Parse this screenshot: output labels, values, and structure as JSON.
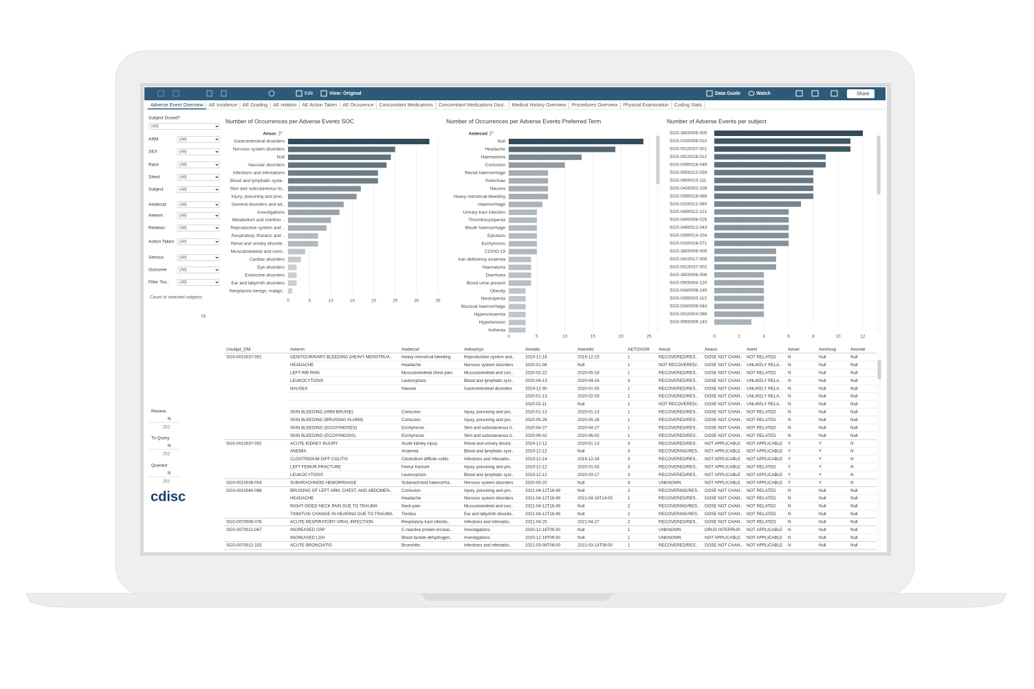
{
  "toolbar": {
    "edit": "Edit",
    "view": "View: Original",
    "data_guide": "Data Guide",
    "watch": "Watch",
    "share": "Share"
  },
  "tabs": [
    "Adverse Event Overview",
    "AE Incidence",
    "AE Grading",
    "AE relation",
    "AE Action Taken",
    "AE Occurence",
    "Concomitant Medications",
    "Concomitant Medications Dosi..",
    "Medical History Overview",
    "Procedures Overview",
    "Physical Examination",
    "Coding Stats"
  ],
  "filters": {
    "subject_dosed": {
      "label": "Subject Dosed?",
      "value": "(All)"
    },
    "items": [
      {
        "label": "ARM",
        "value": "(All)"
      },
      {
        "label": "SEX",
        "value": "(All)"
      },
      {
        "label": "Race",
        "value": "(All)"
      },
      {
        "label": "Siteid",
        "value": "(All)"
      },
      {
        "label": "Subject",
        "value": "(All)"
      },
      {
        "label": "Aedecod",
        "value": "(All)"
      },
      {
        "label": "Aeterm",
        "value": "(All)"
      },
      {
        "label": "Relation",
        "value": "(All)"
      },
      {
        "label": "Action Taken",
        "value": "(All)"
      },
      {
        "label": "Serious",
        "value": "(All)"
      },
      {
        "label": "Outcome",
        "value": "(All)"
      },
      {
        "label": "Filter Tox..",
        "value": "(All)"
      }
    ]
  },
  "count": {
    "label": "Count of selected subjects",
    "value": 78
  },
  "status": [
    {
      "label": "Review",
      "flag": "N",
      "value": 252
    },
    {
      "label": "To Query",
      "flag": "N",
      "value": 252
    },
    {
      "label": "Queried",
      "flag": "N",
      "value": 252
    }
  ],
  "logo": "cdisc",
  "chart_data": [
    {
      "type": "bar",
      "orientation": "horizontal",
      "title": "Number of Occurrences per Adverse Events SOC",
      "category_header": "Aesoc",
      "categories": [
        "Gastrointestinal disorders",
        "Nervous system disorders",
        "Null",
        "Vascular disorders",
        "Infections and infestations",
        "Blood and lymphatic syste..",
        "Skin and subcutaneous tis..",
        "Injury, poisoning and proc..",
        "General disorders and ad..",
        "Investigations",
        "Metabolism and nutrition ..",
        "Reproductive system and ..",
        "Respiratory, thoracic and ..",
        "Renal and urinary disorde..",
        "Musculoskeletal and conn..",
        "Cardiac disorders",
        "Eye disorders",
        "Endocrine disorders",
        "Ear and labyrinth disorders",
        "Neoplasms benign, malign.."
      ],
      "values": [
        33,
        25,
        24,
        23,
        21,
        21,
        17,
        16,
        13,
        12,
        10,
        9,
        7,
        7,
        4,
        3,
        2,
        2,
        2,
        1
      ],
      "colors": [
        "#d3d6d8",
        "#344b59"
      ],
      "xlim": [
        0,
        35
      ],
      "xticks": [
        0,
        5,
        10,
        15,
        20,
        25,
        30,
        35
      ],
      "grid": true
    },
    {
      "type": "bar",
      "orientation": "horizontal",
      "title": "Number of Occurrences per Adverse Events Preferred Term",
      "category_header": "Aedecod",
      "categories": [
        "Null",
        "Headache",
        "Haematoma",
        "Contusion",
        "Rectal haemorrhage",
        "Petechiae",
        "Nausea",
        "Heavy menstrual bleeding",
        "Haemorrhage",
        "Urinary tract infection",
        "Thrombocytopenia",
        "Mouth haemorrhage",
        "Epistaxis",
        "Ecchymosis",
        "COVID-19",
        "Iron deficiency anaemia",
        "Haematuria",
        "Diarrhoea",
        "Blood urine present",
        "Obesity",
        "Neutropenia",
        "Mucosal haemorrhage",
        "Hyperuricaemia",
        "Hypertension",
        "Asthenia"
      ],
      "values": [
        24,
        19,
        13,
        10,
        7,
        7,
        7,
        7,
        6,
        5,
        5,
        5,
        5,
        5,
        5,
        4,
        4,
        4,
        4,
        3,
        3,
        3,
        3,
        3,
        3
      ],
      "colors": [
        "#d3d6d8",
        "#344b59"
      ],
      "xlim": [
        0,
        25
      ],
      "xticks": [
        0,
        5,
        10,
        15,
        20,
        25
      ],
      "grid": true
    },
    {
      "type": "bar",
      "orientation": "horizontal",
      "title": "Number of Adverse Events per subject",
      "categories": [
        "SGS-3800006-005",
        "SGS-0330008-010",
        "SGS-0010037-001",
        "SGS-0810018-012",
        "SGS-0390018-049",
        "SGS-9950012-039",
        "SGS-0900010-111",
        "SGS-0430002-108",
        "SGS-0390018-088",
        "SGS-0320012-080",
        "SGS-0490012-121",
        "SGS-0490008-026",
        "SGS-0480012-043",
        "SGS-0390014-104",
        "SGS-0330018-071",
        "SGS-3800006-009",
        "SGS-0810017-008",
        "SGS-0010037-002",
        "SGS-3800006-006",
        "SGS-0900004-120",
        "SGS-0440008-145",
        "SGS-0390020-113",
        "SGS-0340006-044",
        "SGS-0010004-086",
        "SGS-9950009-143"
      ],
      "values": [
        12,
        11,
        11,
        9,
        9,
        8,
        8,
        8,
        8,
        7,
        6,
        6,
        6,
        6,
        6,
        5,
        5,
        5,
        4,
        4,
        4,
        4,
        4,
        4,
        3
      ],
      "colors": [
        "#d3d6d8",
        "#344b59"
      ],
      "xlim": [
        0,
        12
      ],
      "xticks": [
        0,
        2,
        4,
        6,
        8,
        10,
        12
      ],
      "grid": true
    }
  ],
  "table": {
    "columns": [
      "Usubjid_DM",
      "Aeterm",
      "Aedecod",
      "Aebodsys",
      "Aestdtc",
      "Aeendtc",
      "AETOXGR",
      "Aeout",
      "Aeacn",
      "Aerel",
      "Aeser",
      "Aeshosp",
      "Aesmie"
    ],
    "rows": [
      [
        "SGS-0010037-001",
        "GENITOURINARY BLEEDING (HEAVY MENSTRUA..",
        "Heavy menstrual bleeding",
        "Reproductive system and..",
        "2019-12-16",
        "2019-12-23",
        1,
        "RECOVERED/RES..",
        "DOSE NOT CHAN..",
        "NOT RELATED",
        "N",
        "Null",
        "Null"
      ],
      [
        null,
        "HEADACHE",
        "Headache",
        "Nervous system disorders",
        "2020-01-06",
        "Null",
        1,
        "NOT RECOVERED/..",
        "DOSE NOT CHAN..",
        "UNLIKELY RELA..",
        "N",
        "Null",
        "Null"
      ],
      [
        null,
        "LEFT RIB PAIN",
        "Musculoskeletal chest pain",
        "Musculoskeletal and con..",
        "2020-02-22",
        "2020-05-18",
        1,
        "RECOVERED/RES..",
        "DOSE NOT CHAN..",
        "NOT RELATED",
        "N",
        "Null",
        "Null"
      ],
      [
        null,
        "LEUKOCYTOSIS",
        "Leukocytosis",
        "Blood and lymphatic syst..",
        "2020-04-13",
        "2020-04-16",
        3,
        "RECOVERED/RES..",
        "DOSE NOT CHAN..",
        "UNLIKELY RELA..",
        "N",
        "Null",
        "Null"
      ],
      [
        null,
        "NAUSEA",
        "Nausea",
        "Gastrointestinal disorders",
        "2019-12-30",
        "2020-01-03",
        1,
        "RECOVERED/RES..",
        "DOSE NOT CHAN..",
        "UNLIKELY RELA..",
        "N",
        "Null",
        "Null"
      ],
      [
        null,
        null,
        null,
        null,
        "2020-01-13",
        "2020-02-03",
        1,
        "RECOVERED/RES..",
        "DOSE NOT CHAN..",
        "UNLIKELY RELA..",
        "N",
        "Null",
        "Null"
      ],
      [
        null,
        null,
        null,
        null,
        "2020-02-11",
        "Null",
        1,
        "NOT RECOVERED/..",
        "DOSE NOT CHAN..",
        "UNLIKELY RELA..",
        "N",
        "Null",
        "Null"
      ],
      [
        null,
        "SKIN BLEEDING (ARM BRUISE)",
        "Contusion",
        "Injury, poisoning and pro..",
        "2020-01-13",
        "2020-01-13",
        1,
        "RECOVERED/RES..",
        "DOSE NOT CHAN..",
        "NOT RELATED",
        "N",
        "Null",
        "Null"
      ],
      [
        null,
        "SKIN BLEEDING (BRUISING IN ARM)",
        "Contusion",
        "Injury, poisoning and pro..",
        "2020-05-26",
        "2020-05-26",
        1,
        "RECOVERED/RES..",
        "DOSE NOT CHAN..",
        "NOT RELATED",
        "N",
        "Null",
        "Null"
      ],
      [
        null,
        "SKIN BLEEDING (ECCHYMOSES)",
        "Ecchymosis",
        "Skin and subcutaneous ti..",
        "2020-04-27",
        "2020-04-27",
        1,
        "RECOVERED/RES..",
        "DOSE NOT CHAN..",
        "NOT RELATED",
        "N",
        "Null",
        "Null"
      ],
      [
        null,
        "SKIN BLEEDING (ECCHYMOSIS)",
        "Ecchymosis",
        "Skin and subcutaneous ti..",
        "2020-06-02",
        "2020-06-02",
        1,
        "RECOVERED/RES..",
        "DOSE NOT CHAN..",
        "NOT RELATED",
        "N",
        "Null",
        "Null"
      ],
      [
        "SGS-0010037-002",
        "ACUTE KIDNEY INJURY",
        "Acute kidney injury",
        "Renal and urinary disord..",
        "2019-12-12",
        "2020-01-13",
        3,
        "RECOVERED/RES..",
        "NOT APPLICABLE",
        "NOT APPLICABLE",
        "Y",
        "Y",
        "N"
      ],
      [
        null,
        "ANEMIA",
        "Anaemia",
        "Blood and lymphatic syst..",
        "2019-12-12",
        "Null",
        3,
        "RECOVERING/RES..",
        "NOT APPLICABLE",
        "NOT APPLICABLE",
        "Y",
        "Y",
        "N"
      ],
      [
        null,
        "CLOSTRIDIUM DIFF COLITIS",
        "Clostridium difficile colitis",
        "Infections and infestatio..",
        "2019-12-14",
        "2019-12-24",
        3,
        "RECOVERED/RES..",
        "NOT APPLICABLE",
        "NOT APPLICABLE",
        "Y",
        "Y",
        "N"
      ],
      [
        null,
        "LEFT FEMUR FRACTURE",
        "Femur fracture",
        "Injury, poisoning and pro..",
        "2019-12-12",
        "2020-01-03",
        3,
        "RECOVERED/RES..",
        "NOT APPLICABLE",
        "NOT RELATED",
        "Y",
        "Y",
        "N"
      ],
      [
        null,
        "LEUKOCYTOSIS",
        "Leukocytosis",
        "Blood and lymphatic syst..",
        "2019-12-12",
        "2020-03-17",
        3,
        "RECOVERED/RES..",
        "NOT APPLICABLE",
        "NOT APPLICABLE",
        "Y",
        "Y",
        "N"
      ],
      [
        "SGS-0010038-004",
        "SUBARACHNOID HEMORRHAGE",
        "Subarachnoid haemorrha..",
        "Nervous system disorders",
        "2020-03-20",
        "Null",
        4,
        "UNKNOWN",
        "NOT APPLICABLE",
        "NOT APPLICABLE",
        "Y",
        "Y",
        "N"
      ],
      [
        "SGS-0010040-086",
        "BRUISING OF LEFT ARM, CHEST, AND ABDOMEN..",
        "Contusion",
        "Injury, poisoning and pro..",
        "2021-04-12T16:49",
        "Null",
        2,
        "RECOVERING/RES..",
        "DOSE NOT CHAN..",
        "NOT RELATED",
        "N",
        "Null",
        "Null"
      ],
      [
        null,
        "HEADACHE",
        "Headache",
        "Nervous system disorders",
        "2021-04-12T16:49",
        "2021-04-16T14:00",
        1,
        "RECOVERED/RES..",
        "DOSE NOT CHAN..",
        "NOT RELATED",
        "N",
        "Null",
        "Null"
      ],
      [
        null,
        "RIGHT-SIDED NECK PAIN DUE TO TRAUMA",
        "Neck pain",
        "Musculoskeletal and con..",
        "2021-04-12T16:49",
        "Null",
        2,
        "RECOVERING/RES..",
        "DOSE NOT CHAN..",
        "NOT RELATED",
        "N",
        "Null",
        "Null"
      ],
      [
        null,
        "TINNITUS/ CHANGE IN HEARING DUE TO TRAUMA",
        "Tinnitus",
        "Ear and labyrinth disorde..",
        "2021-04-12T16:49",
        "Null",
        2,
        "RECOVERING/RES..",
        "DOSE NOT CHAN..",
        "NOT RELATED",
        "N",
        "Null",
        "Null"
      ],
      [
        "SGS-0070006-078",
        "ACUTE RESPIRATORY VIRAL INFECTION",
        "Respiratory tract infectio..",
        "Infections and infestatio..",
        "2021-04-20",
        "2021-04-27",
        2,
        "RECOVERED/RES..",
        "DOSE NOT CHAN..",
        "NOT RELATED",
        "N",
        "Null",
        "Null"
      ],
      [
        "SGS-0070012-067",
        "INCREASED CRP",
        "C-reactive protein increas..",
        "Investigations",
        "2020-12-16T09:30",
        "Null",
        1,
        "UNKNOWN",
        "DRUG INTERRUP..",
        "NOT APPLICABLE",
        "N",
        "Null",
        "Null"
      ],
      [
        null,
        "INCREASED LDH",
        "Blood lactate dehydrogen..",
        "Investigations",
        "2020-12-16T09:30",
        "Null",
        1,
        "UNKNOWN",
        "NOT APPLICABLE",
        "NOT APPLICABLE",
        "N",
        "Null",
        "Null"
      ],
      [
        "SGS-0070012-103",
        "ACUTE BRONCHITIS",
        "Bronchitis",
        "Infections and infestatio..",
        "2021-03-08T08:00",
        "2021-03-14T08:00",
        1,
        "RECOVERED/RES..",
        "DOSE NOT CHAN..",
        "NOT APPLICABLE",
        "N",
        "Null",
        "Null"
      ]
    ]
  }
}
